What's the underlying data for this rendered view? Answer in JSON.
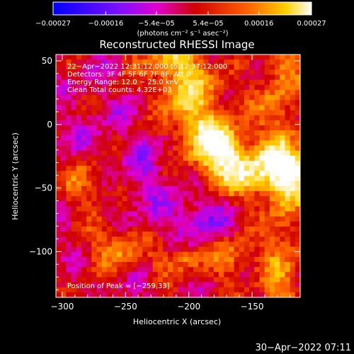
{
  "chart_data": {
    "type": "heatmap",
    "title": "Reconstructed RHESSI Image",
    "xlabel": "Heliocentric X (arcsec)",
    "ylabel": "Heliocentric Y (arcsec)",
    "xlim": [
      -305,
      -112
    ],
    "ylim": [
      -136,
      55
    ],
    "x_ticks": [
      -300,
      -250,
      -200,
      -150
    ],
    "y_ticks": [
      50,
      0,
      -50,
      -100
    ],
    "x_tick_labels": [
      "−300",
      "−250",
      "−200",
      "−150"
    ],
    "y_tick_labels": [
      "50",
      "0",
      "−50",
      "−100"
    ],
    "colorbar": {
      "min": -0.00027,
      "max": 0.00027,
      "tick_values": [
        -0.00027,
        -0.00016,
        -5.4e-05,
        5.4e-05,
        0.00016,
        0.00027
      ],
      "tick_labels": [
        "−0.00027",
        "−0.00016",
        "−5.4e−05",
        "5.4e−05",
        "0.00016",
        "0.00027"
      ],
      "unit_label": "(photons cm⁻² s⁻¹ asec⁻²)",
      "colormap": [
        "#0000ff",
        "#7a10ff",
        "#e000d0",
        "#d00000",
        "#ff6000",
        "#ffd000",
        "#ffffff"
      ]
    },
    "annotations": [
      "22−Apr−2022 12:31:12.000 to 12:37:12.000",
      "Detectors: 3F 4F 5F 6F 7F 8F, Att 0",
      "Energy Range: 12.0 − 25.0 keV",
      "Clean      Total counts: 4.32E+03",
      "Position of Peak = [−259,33]"
    ],
    "peak": [
      -259,
      33
    ],
    "grid": false
  },
  "footer": {
    "timestamp": "30−Apr−2022 07:11"
  },
  "colors": {
    "background": "#000000",
    "text": "#ffffff"
  }
}
